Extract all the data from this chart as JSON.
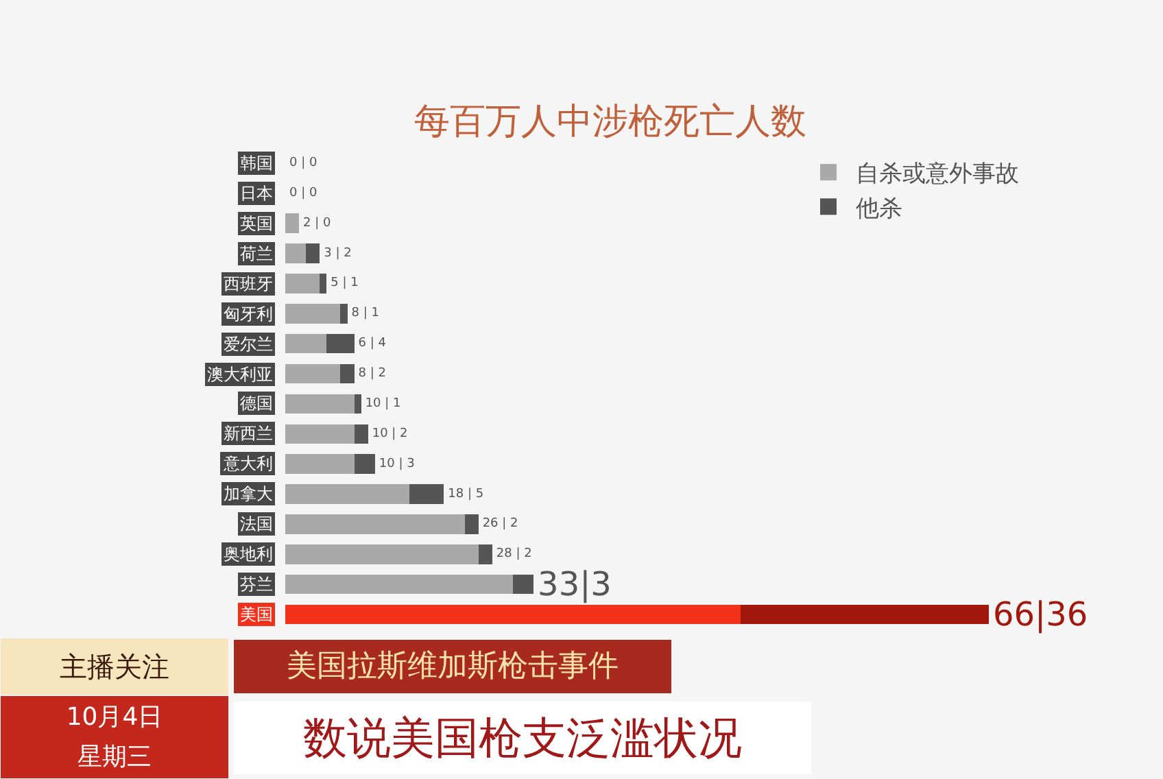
{
  "chart_data": {
    "type": "bar",
    "orientation": "horizontal",
    "stacked": true,
    "title": "每百万人中涉枪死亡人数",
    "categories": [
      "韩国",
      "日本",
      "英国",
      "荷兰",
      "西班牙",
      "匈牙利",
      "爱尔兰",
      "澳大利亚",
      "德国",
      "新西兰",
      "意大利",
      "加拿大",
      "法国",
      "奥地利",
      "芬兰",
      "美国"
    ],
    "series": [
      {
        "name": "自杀或意外事故",
        "color": "#a9a9a9",
        "colors": [
          "#a9a9a9",
          "#a9a9a9",
          "#a9a9a9",
          "#a9a9a9",
          "#a9a9a9",
          "#a9a9a9",
          "#a9a9a9",
          "#a9a9a9",
          "#a9a9a9",
          "#a9a9a9",
          "#a9a9a9",
          "#a9a9a9",
          "#a9a9a9",
          "#a9a9a9",
          "#a9a9a9",
          "#f3301a"
        ],
        "values": [
          0,
          0,
          2,
          3,
          5,
          8,
          6,
          8,
          10,
          10,
          10,
          18,
          26,
          28,
          33,
          66
        ]
      },
      {
        "name": "他杀",
        "color": "#555555",
        "colors": [
          "#555555",
          "#555555",
          "#555555",
          "#555555",
          "#555555",
          "#555555",
          "#555555",
          "#555555",
          "#555555",
          "#555555",
          "#555555",
          "#555555",
          "#555555",
          "#555555",
          "#555555",
          "#a3180c"
        ],
        "values": [
          0,
          0,
          0,
          2,
          1,
          1,
          4,
          2,
          1,
          2,
          3,
          5,
          2,
          2,
          3,
          36
        ],
        "value_labels": [
          "0 | 0",
          "0 | 0",
          "2 | 0",
          "3 | 2",
          "5 | 1",
          "8 | 1",
          "6 | 4",
          "8 | 2",
          "10 | 1",
          "10 | 2",
          "10 | 3",
          "18 | 5",
          "26 | 2",
          "28 | 2",
          "33|3",
          "66|36"
        ]
      }
    ],
    "legend": "top right",
    "annotations": [
      "主播关注",
      "美国拉斯维加斯枪击事件",
      "10月4日",
      "星期三",
      "数说美国枪支泛滥状况"
    ]
  }
}
